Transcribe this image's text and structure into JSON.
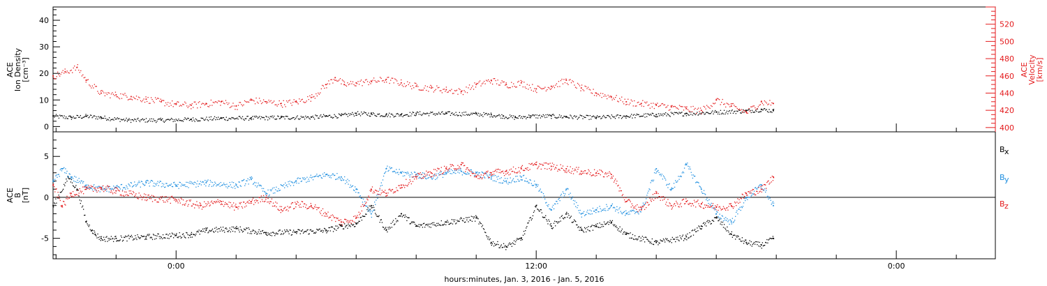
{
  "colors": {
    "black": "#000000",
    "red": "#e41a1c",
    "blue": "#1f8fe0"
  },
  "chart_data": [
    {
      "type": "scatter",
      "panel": "top",
      "ylabel_lines": [
        "ACE",
        "Ion Density",
        "[cm⁻³]"
      ],
      "ylim": [
        -2,
        45
      ],
      "yticks": [
        0,
        10,
        20,
        30,
        40
      ],
      "y2label_lines": [
        "ACE",
        "Velocity",
        "[km/s]"
      ],
      "y2lim": [
        395,
        540
      ],
      "y2ticks": [
        400,
        420,
        440,
        460,
        480,
        500,
        520
      ],
      "series": [
        {
          "axis": "left",
          "color": "#000000",
          "x": [
            -4.1,
            -3.5,
            -3,
            -2.5,
            -1.6,
            -0.5,
            0.5,
            1.5,
            2.5,
            3.5,
            4.5,
            5,
            5.5,
            6,
            6.5,
            7,
            7.5,
            8,
            9,
            10,
            10.5,
            10.9,
            11.3,
            11.8,
            12.5,
            13,
            14,
            15,
            16,
            17,
            18,
            19,
            19.5,
            19.9
          ],
          "y": [
            4,
            3.5,
            4,
            3.5,
            2.5,
            2.5,
            2.8,
            3.2,
            3.3,
            3.5,
            3.6,
            4,
            4.2,
            5,
            4.8,
            4.5,
            4.6,
            5,
            5,
            4.8,
            4.5,
            4,
            3.5,
            4,
            4,
            3.8,
            3.5,
            4,
            4.5,
            5,
            5.5,
            6,
            6.5,
            6
          ]
        },
        {
          "axis": "right",
          "color": "#e41a1c",
          "x": [
            -4.1,
            -3.7,
            -3.3,
            -3,
            -2.5,
            -2,
            -1.5,
            -1,
            -0.5,
            0,
            0.5,
            1,
            1.5,
            2,
            2.5,
            3,
            3.5,
            4,
            4.5,
            5,
            5.3,
            5.6,
            6,
            6.5,
            7,
            7.5,
            8,
            8.5,
            9,
            9.5,
            10,
            10.5,
            11,
            11.5,
            12,
            12.5,
            13,
            13.5,
            14,
            14.5,
            15,
            15.5,
            16,
            16.5,
            17,
            17.5,
            18,
            18.5,
            19,
            19.5,
            19.9
          ],
          "y": [
            460,
            465,
            470,
            455,
            440,
            438,
            436,
            433,
            430,
            427,
            426,
            428,
            430,
            425,
            432,
            430,
            428,
            430,
            435,
            450,
            458,
            450,
            452,
            454,
            456,
            452,
            448,
            446,
            444,
            442,
            450,
            455,
            450,
            452,
            445,
            448,
            455,
            446,
            440,
            436,
            430,
            428,
            426,
            424,
            422,
            420,
            432,
            425,
            418,
            430,
            428
          ]
        }
      ]
    },
    {
      "type": "scatter",
      "panel": "bottom",
      "ylabel_lines": [
        "ACE",
        "B",
        "[nT]"
      ],
      "ylim": [
        -7.5,
        8
      ],
      "yticks": [
        -5,
        0,
        5
      ],
      "legend_position": "right",
      "legend": [
        {
          "name": "B",
          "sub": "x",
          "color": "#000000"
        },
        {
          "name": "B",
          "sub": "y",
          "color": "#1f8fe0"
        },
        {
          "name": "B",
          "sub": "z",
          "color": "#e41a1c"
        }
      ],
      "xlabel": "hours:minutes, Jan.  3, 2016 - Jan.  5, 2016",
      "xlim": [
        -4.1,
        27.3
      ],
      "xticks": [
        {
          "x": 0,
          "label": "0:00"
        },
        {
          "x": 12,
          "label": "12:00"
        },
        {
          "x": 24,
          "label": "0:00"
        }
      ],
      "series": [
        {
          "name": "Bx",
          "color": "#000000",
          "x": [
            -4.1,
            -3.6,
            -3.3,
            -3,
            -2.8,
            -2.7,
            -2.5,
            -2,
            -1,
            0,
            0.5,
            1,
            2,
            3,
            4,
            5,
            5.5,
            6,
            6.5,
            7,
            7.5,
            8,
            9,
            10,
            10.5,
            11,
            11.5,
            12,
            12.5,
            13,
            13.5,
            14,
            14.5,
            15,
            16,
            17,
            17.5,
            18,
            18.5,
            19,
            19.5,
            19.9
          ],
          "y": [
            -1,
            2.5,
            1,
            -3,
            -4,
            -4.5,
            -5,
            -5,
            -4.8,
            -4.6,
            -4.5,
            -4,
            -3.8,
            -4.3,
            -4.2,
            -4,
            -3.5,
            -3.2,
            -1,
            -4,
            -2,
            -3.5,
            -3,
            -2.5,
            -5.5,
            -6,
            -5,
            -1,
            -3.5,
            -2,
            -4,
            -3.5,
            -3,
            -4.5,
            -5.5,
            -4.8,
            -3.5,
            -2.5,
            -4.5,
            -5.5,
            -5.8,
            -5
          ]
        },
        {
          "name": "By",
          "color": "#1f8fe0",
          "x": [
            -4.1,
            -3.8,
            -3.5,
            -3,
            -2.5,
            -2,
            -1,
            0,
            1,
            2,
            2.5,
            3,
            4,
            5,
            5.5,
            6,
            6.5,
            7,
            7.5,
            8,
            8.5,
            9,
            9.5,
            10,
            10.5,
            11,
            11.5,
            12,
            12.5,
            13,
            13.5,
            14,
            14.5,
            15,
            15.5,
            16,
            16.5,
            17,
            17.5,
            18,
            18.5,
            19,
            19.5,
            19.9
          ],
          "y": [
            2,
            3.5,
            2.5,
            1.5,
            1,
            1.2,
            1.8,
            1.5,
            1.8,
            1.5,
            2.2,
            0.5,
            2,
            2.8,
            2.5,
            1,
            -2,
            3.5,
            3,
            2.8,
            2.5,
            3,
            3.2,
            3,
            2.5,
            2,
            2.5,
            1.5,
            -1.5,
            1,
            -2,
            -1.5,
            -1,
            -2,
            -1.5,
            3.5,
            1,
            4,
            1,
            -2,
            -3,
            0,
            1.5,
            -1
          ]
        },
        {
          "name": "Bz",
          "color": "#e41a1c",
          "x": [
            -4.1,
            -3.8,
            -3.5,
            -3,
            -2.5,
            -2,
            -1,
            0,
            0.8,
            1.5,
            2,
            2.5,
            3,
            3.5,
            4,
            4.5,
            5,
            5.5,
            6,
            6.5,
            7,
            7.5,
            8,
            8.5,
            9,
            9.5,
            10,
            10.5,
            11,
            11.5,
            12,
            12.5,
            13,
            13.5,
            14,
            14.5,
            15,
            15.5,
            16,
            16.5,
            17,
            17.5,
            18,
            18.5,
            19,
            19.5,
            19.9
          ],
          "y": [
            1.5,
            -1,
            0.5,
            1,
            1.2,
            0.8,
            0,
            -0.3,
            -1,
            -0.5,
            -1.2,
            -0.5,
            0,
            -1.5,
            -0.8,
            -1,
            -2,
            -3,
            -2.5,
            1,
            0.5,
            1.5,
            2.5,
            3,
            3.5,
            4,
            2.5,
            3,
            3.2,
            3.5,
            4,
            3.8,
            3.5,
            3.2,
            3,
            2.8,
            -0.5,
            -1.5,
            0.5,
            -1,
            -0.5,
            -0.8,
            -1.2,
            -1,
            0.5,
            1,
            2.5
          ]
        }
      ]
    }
  ]
}
